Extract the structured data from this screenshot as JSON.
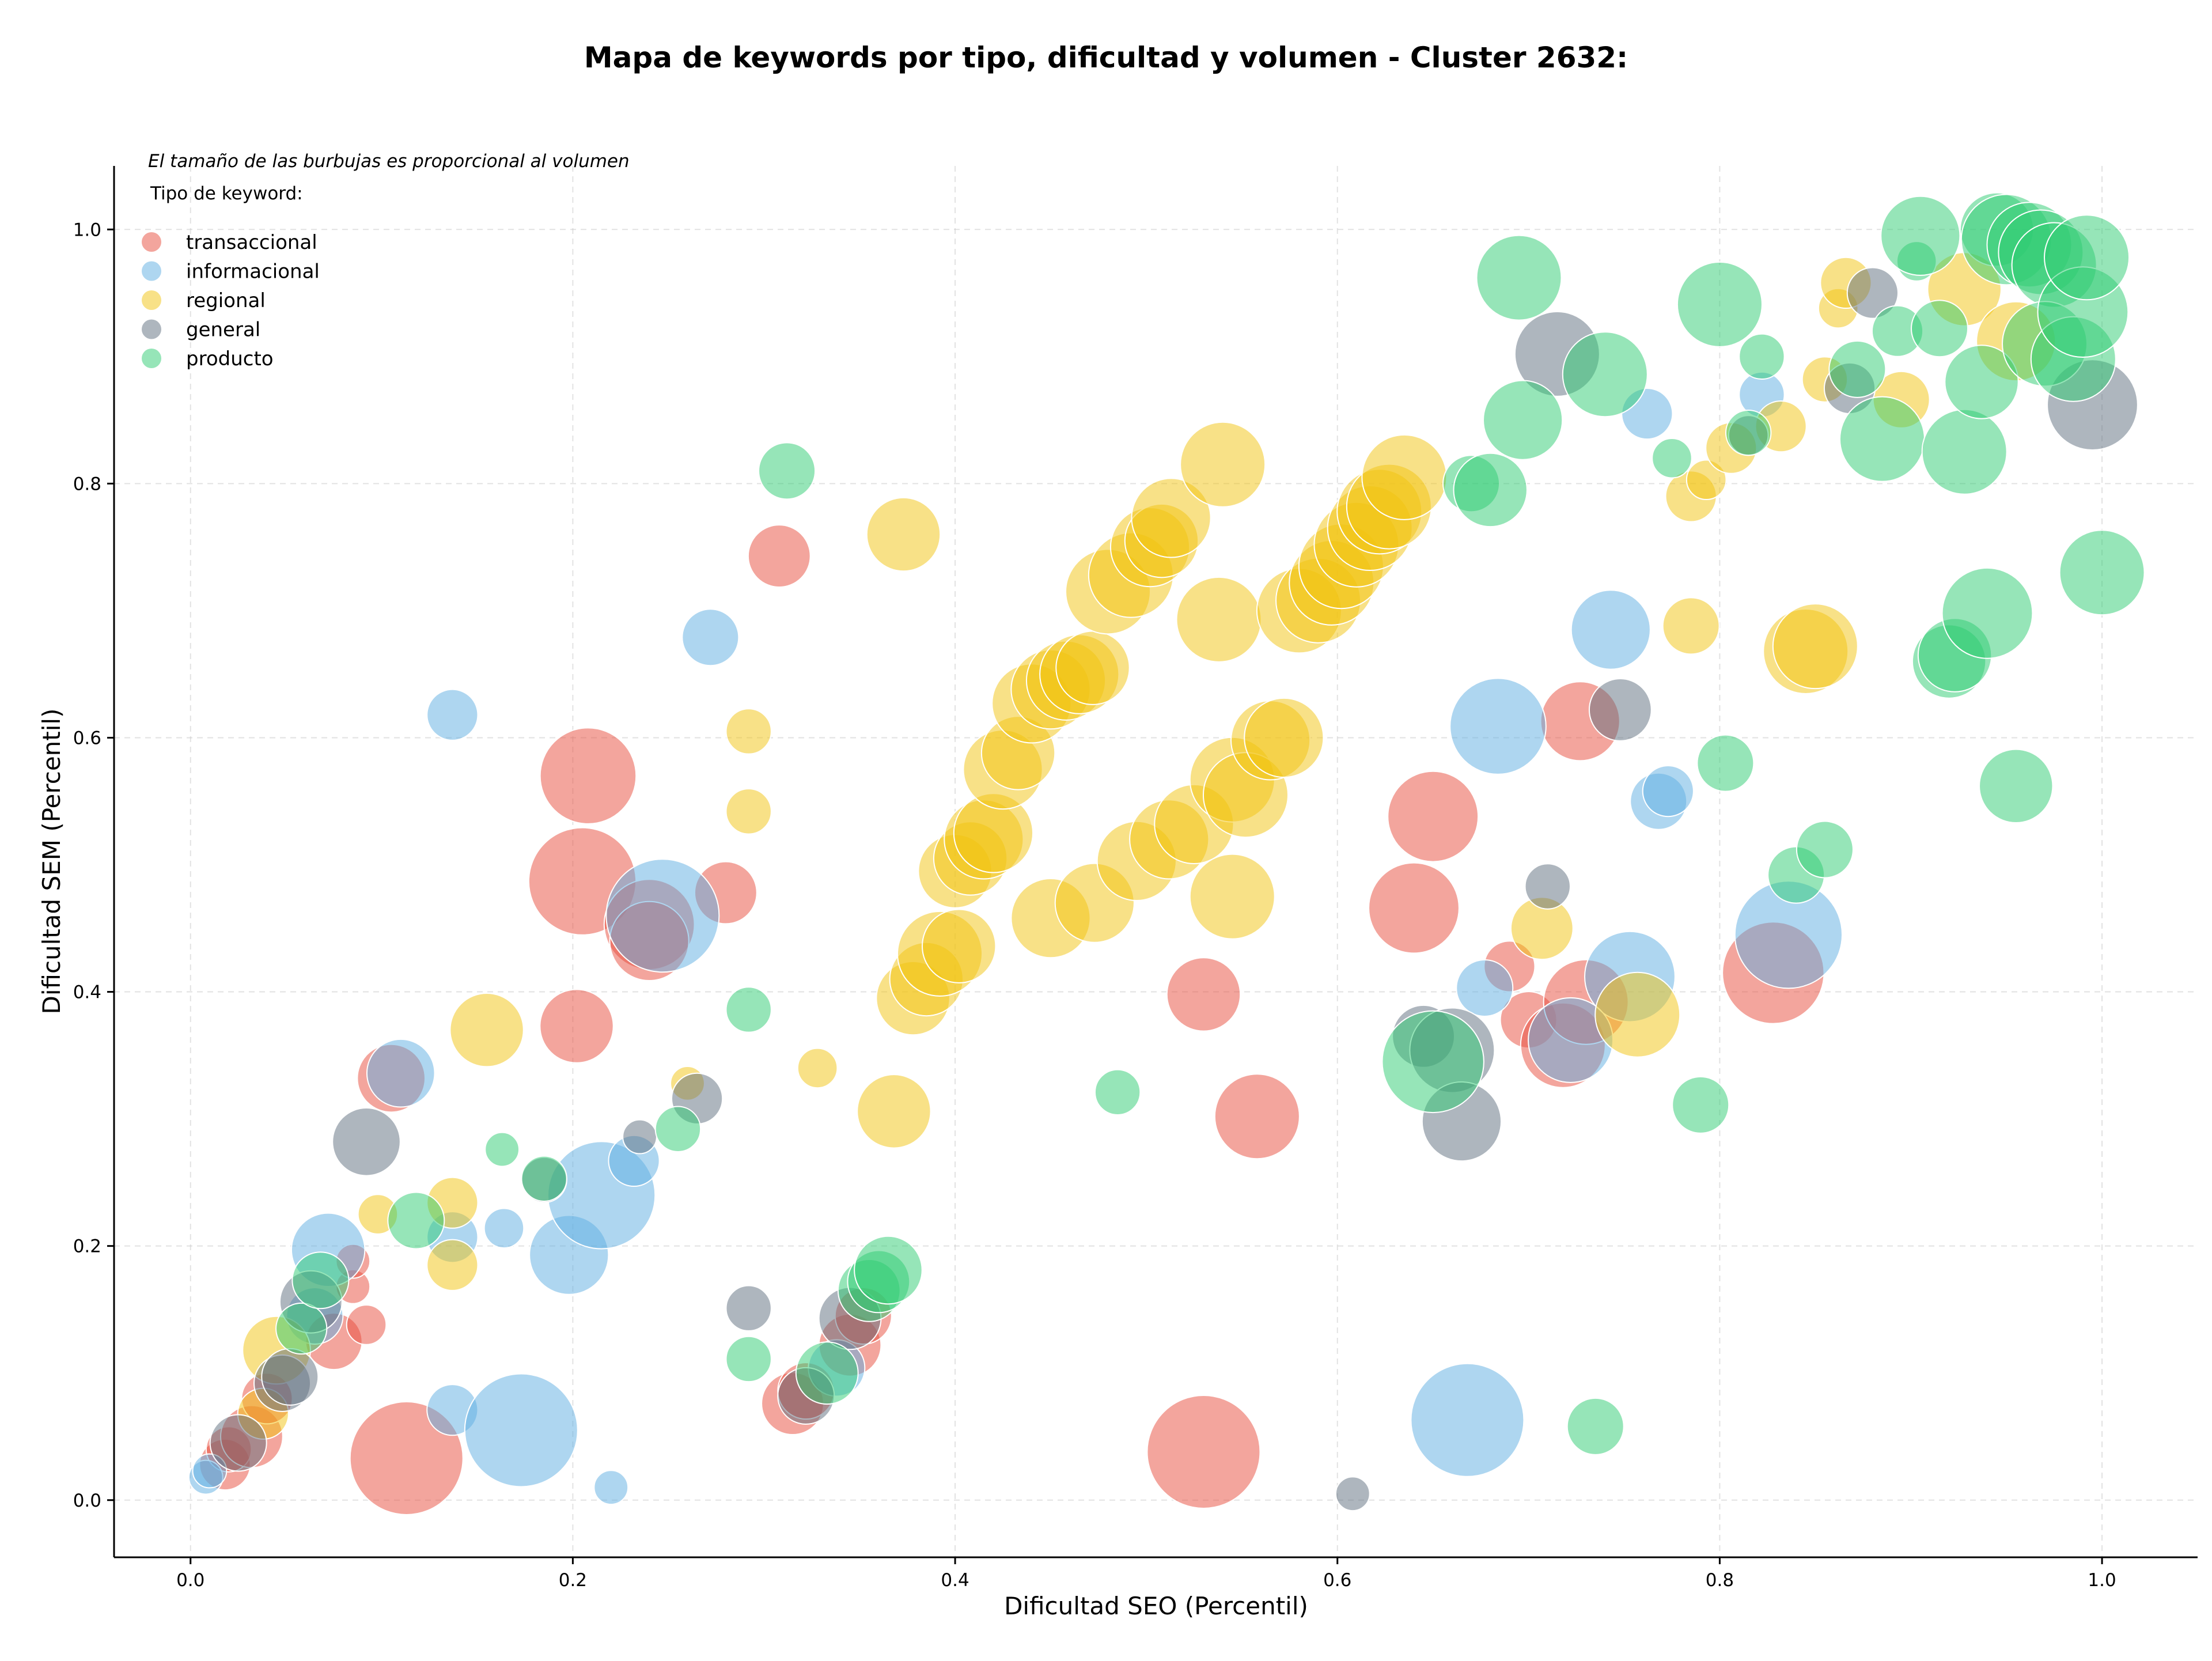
{
  "chart_data": {
    "type": "scatter",
    "title": "Mapa de keywords por tipo, dificultad y volumen - Cluster 2632:",
    "xlabel": "Dificultad SEO (Percentil)",
    "ylabel": "Dificultad SEM (Percentil)",
    "xlim": [
      -0.04,
      1.05
    ],
    "ylim": [
      -0.045,
      1.05
    ],
    "xticks": [
      "0.0",
      "0.2",
      "0.4",
      "0.6",
      "0.8",
      "1.0"
    ],
    "yticks": [
      "0.0",
      "0.2",
      "0.4",
      "0.6",
      "0.8",
      "1.0"
    ],
    "grid": true,
    "legend_position": "top-left",
    "note": "El tamaño de las burbujas es proporcional al volumen",
    "legend_title": "Tipo de keyword:",
    "series": [
      {
        "name": "transaccional",
        "color": "#e74c3c",
        "points": [
          [
            0.113,
            0.033,
            40
          ],
          [
            0.53,
            0.038,
            40
          ],
          [
            0.208,
            0.57,
            34
          ],
          [
            0.205,
            0.487,
            38
          ],
          [
            0.24,
            0.453,
            32
          ],
          [
            0.24,
            0.44,
            28
          ],
          [
            0.28,
            0.478,
            22
          ],
          [
            0.308,
            0.743,
            22
          ],
          [
            0.202,
            0.373,
            26
          ],
          [
            0.105,
            0.332,
            24
          ],
          [
            0.075,
            0.125,
            20
          ],
          [
            0.085,
            0.168,
            12
          ],
          [
            0.085,
            0.188,
            12
          ],
          [
            0.092,
            0.138,
            14
          ],
          [
            0.018,
            0.028,
            18
          ],
          [
            0.02,
            0.04,
            16
          ],
          [
            0.032,
            0.05,
            22
          ],
          [
            0.04,
            0.08,
            18
          ],
          [
            0.315,
            0.076,
            22
          ],
          [
            0.322,
            0.086,
            20
          ],
          [
            0.345,
            0.122,
            22
          ],
          [
            0.352,
            0.145,
            20
          ],
          [
            0.53,
            0.398,
            26
          ],
          [
            0.558,
            0.302,
            30
          ],
          [
            0.64,
            0.466,
            32
          ],
          [
            0.65,
            0.538,
            32
          ],
          [
            0.69,
            0.42,
            18
          ],
          [
            0.7,
            0.378,
            20
          ],
          [
            0.718,
            0.358,
            30
          ],
          [
            0.727,
            0.613,
            28
          ],
          [
            0.73,
            0.392,
            30
          ],
          [
            0.828,
            0.415,
            36
          ]
        ]
      },
      {
        "name": "informacional",
        "color": "#5dade2",
        "points": [
          [
            0.008,
            0.018,
            12
          ],
          [
            0.01,
            0.023,
            12
          ],
          [
            0.072,
            0.197,
            26
          ],
          [
            0.065,
            0.145,
            20
          ],
          [
            0.11,
            0.336,
            24
          ],
          [
            0.137,
            0.618,
            18
          ],
          [
            0.137,
            0.207,
            18
          ],
          [
            0.137,
            0.071,
            18
          ],
          [
            0.164,
            0.214,
            14
          ],
          [
            0.173,
            0.055,
            40
          ],
          [
            0.198,
            0.193,
            28
          ],
          [
            0.215,
            0.24,
            38
          ],
          [
            0.22,
            0.01,
            12
          ],
          [
            0.232,
            0.267,
            18
          ],
          [
            0.247,
            0.46,
            40
          ],
          [
            0.272,
            0.679,
            20
          ],
          [
            0.338,
            0.104,
            20
          ],
          [
            0.762,
            0.855,
            18
          ],
          [
            0.743,
            0.685,
            28
          ],
          [
            0.684,
            0.609,
            34
          ],
          [
            0.677,
            0.403,
            20
          ],
          [
            0.668,
            0.063,
            40
          ],
          [
            0.753,
            0.412,
            32
          ],
          [
            0.768,
            0.55,
            20
          ],
          [
            0.773,
            0.558,
            18
          ],
          [
            0.722,
            0.362,
            30
          ],
          [
            0.836,
            0.445,
            38
          ],
          [
            0.822,
            0.87,
            16
          ]
        ]
      },
      {
        "name": "regional",
        "color": "#f1c40f",
        "points": [
          [
            0.038,
            0.068,
            18
          ],
          [
            0.045,
            0.118,
            24
          ],
          [
            0.098,
            0.225,
            14
          ],
          [
            0.137,
            0.234,
            18
          ],
          [
            0.137,
            0.185,
            18
          ],
          [
            0.155,
            0.37,
            26
          ],
          [
            0.26,
            0.328,
            12
          ],
          [
            0.292,
            0.605,
            16
          ],
          [
            0.292,
            0.542,
            16
          ],
          [
            0.328,
            0.34,
            14
          ],
          [
            0.368,
            0.306,
            26
          ],
          [
            0.373,
            0.76,
            26
          ],
          [
            0.378,
            0.395,
            26
          ],
          [
            0.385,
            0.41,
            26
          ],
          [
            0.392,
            0.43,
            30
          ],
          [
            0.402,
            0.436,
            26
          ],
          [
            0.4,
            0.495,
            26
          ],
          [
            0.408,
            0.505,
            26
          ],
          [
            0.415,
            0.52,
            28
          ],
          [
            0.42,
            0.525,
            28
          ],
          [
            0.425,
            0.575,
            28
          ],
          [
            0.433,
            0.588,
            26
          ],
          [
            0.44,
            0.627,
            28
          ],
          [
            0.45,
            0.638,
            28
          ],
          [
            0.458,
            0.645,
            28
          ],
          [
            0.465,
            0.65,
            28
          ],
          [
            0.472,
            0.655,
            26
          ],
          [
            0.45,
            0.458,
            28
          ],
          [
            0.473,
            0.47,
            28
          ],
          [
            0.48,
            0.715,
            30
          ],
          [
            0.492,
            0.728,
            30
          ],
          [
            0.495,
            0.503,
            28
          ],
          [
            0.502,
            0.75,
            28
          ],
          [
            0.508,
            0.755,
            26
          ],
          [
            0.513,
            0.773,
            28
          ],
          [
            0.512,
            0.52,
            28
          ],
          [
            0.525,
            0.532,
            28
          ],
          [
            0.54,
            0.815,
            30
          ],
          [
            0.538,
            0.693,
            30
          ],
          [
            0.545,
            0.567,
            30
          ],
          [
            0.552,
            0.555,
            30
          ],
          [
            0.545,
            0.475,
            30
          ],
          [
            0.565,
            0.598,
            28
          ],
          [
            0.572,
            0.6,
            28
          ],
          [
            0.58,
            0.7,
            30
          ],
          [
            0.59,
            0.708,
            30
          ],
          [
            0.597,
            0.722,
            30
          ],
          [
            0.602,
            0.735,
            30
          ],
          [
            0.61,
            0.752,
            30
          ],
          [
            0.617,
            0.765,
            30
          ],
          [
            0.622,
            0.778,
            30
          ],
          [
            0.627,
            0.782,
            30
          ],
          [
            0.635,
            0.805,
            30
          ],
          [
            0.707,
            0.45,
            22
          ],
          [
            0.757,
            0.382,
            30
          ],
          [
            0.785,
            0.79,
            18
          ],
          [
            0.785,
            0.688,
            20
          ],
          [
            0.793,
            0.803,
            14
          ],
          [
            0.806,
            0.828,
            18
          ],
          [
            0.832,
            0.845,
            18
          ],
          [
            0.845,
            0.668,
            30
          ],
          [
            0.85,
            0.672,
            30
          ],
          [
            0.855,
            0.882,
            16
          ],
          [
            0.862,
            0.938,
            14
          ],
          [
            0.866,
            0.958,
            18
          ],
          [
            0.895,
            0.866,
            20
          ],
          [
            0.928,
            0.953,
            26
          ],
          [
            0.955,
            0.912,
            28
          ]
        ]
      },
      {
        "name": "general",
        "color": "#5d6d7e",
        "points": [
          [
            0.025,
            0.045,
            20
          ],
          [
            0.048,
            0.092,
            20
          ],
          [
            0.052,
            0.097,
            20
          ],
          [
            0.063,
            0.156,
            22
          ],
          [
            0.092,
            0.282,
            24
          ],
          [
            0.185,
            0.252,
            16
          ],
          [
            0.235,
            0.286,
            12
          ],
          [
            0.265,
            0.316,
            18
          ],
          [
            0.292,
            0.151,
            16
          ],
          [
            0.322,
            0.082,
            20
          ],
          [
            0.345,
            0.143,
            22
          ],
          [
            0.608,
            0.005,
            12
          ],
          [
            0.645,
            0.365,
            22
          ],
          [
            0.66,
            0.354,
            30
          ],
          [
            0.665,
            0.298,
            28
          ],
          [
            0.71,
            0.483,
            16
          ],
          [
            0.715,
            0.902,
            30
          ],
          [
            0.748,
            0.622,
            22
          ],
          [
            0.815,
            0.838,
            14
          ],
          [
            0.868,
            0.875,
            18
          ],
          [
            0.88,
            0.95,
            18
          ],
          [
            0.995,
            0.862,
            32
          ]
        ]
      },
      {
        "name": "producto",
        "color": "#2ecc71",
        "points": [
          [
            0.058,
            0.135,
            18
          ],
          [
            0.068,
            0.173,
            20
          ],
          [
            0.118,
            0.22,
            20
          ],
          [
            0.163,
            0.276,
            12
          ],
          [
            0.185,
            0.253,
            16
          ],
          [
            0.255,
            0.292,
            16
          ],
          [
            0.292,
            0.386,
            16
          ],
          [
            0.292,
            0.111,
            16
          ],
          [
            0.312,
            0.81,
            20
          ],
          [
            0.333,
            0.1,
            22
          ],
          [
            0.355,
            0.165,
            22
          ],
          [
            0.36,
            0.172,
            22
          ],
          [
            0.365,
            0.181,
            24
          ],
          [
            0.485,
            0.321,
            16
          ],
          [
            0.65,
            0.345,
            36
          ],
          [
            0.67,
            0.8,
            20
          ],
          [
            0.68,
            0.795,
            26
          ],
          [
            0.695,
            0.962,
            30
          ],
          [
            0.697,
            0.85,
            28
          ],
          [
            0.735,
            0.058,
            20
          ],
          [
            0.74,
            0.886,
            30
          ],
          [
            0.775,
            0.82,
            14
          ],
          [
            0.79,
            0.311,
            20
          ],
          [
            0.8,
            0.941,
            30
          ],
          [
            0.803,
            0.58,
            20
          ],
          [
            0.815,
            0.84,
            16
          ],
          [
            0.822,
            0.9,
            16
          ],
          [
            0.84,
            0.492,
            20
          ],
          [
            0.855,
            0.512,
            20
          ],
          [
            0.872,
            0.89,
            20
          ],
          [
            0.885,
            0.835,
            30
          ],
          [
            0.893,
            0.92,
            18
          ],
          [
            0.903,
            0.975,
            14
          ],
          [
            0.905,
            0.995,
            28
          ],
          [
            0.915,
            0.922,
            20
          ],
          [
            0.92,
            0.66,
            26
          ],
          [
            0.923,
            0.665,
            26
          ],
          [
            0.928,
            0.825,
            30
          ],
          [
            0.937,
            0.88,
            26
          ],
          [
            0.94,
            0.698,
            32
          ],
          [
            0.945,
            1.0,
            26
          ],
          [
            0.95,
            0.992,
            32
          ],
          [
            0.955,
            0.562,
            26
          ],
          [
            0.962,
            0.988,
            30
          ],
          [
            0.968,
            0.982,
            30
          ],
          [
            0.975,
            0.972,
            30
          ],
          [
            0.97,
            0.91,
            30
          ],
          [
            0.985,
            0.898,
            30
          ],
          [
            0.99,
            0.935,
            32
          ],
          [
            0.992,
            0.978,
            30
          ],
          [
            1.0,
            0.73,
            30
          ]
        ]
      }
    ]
  }
}
